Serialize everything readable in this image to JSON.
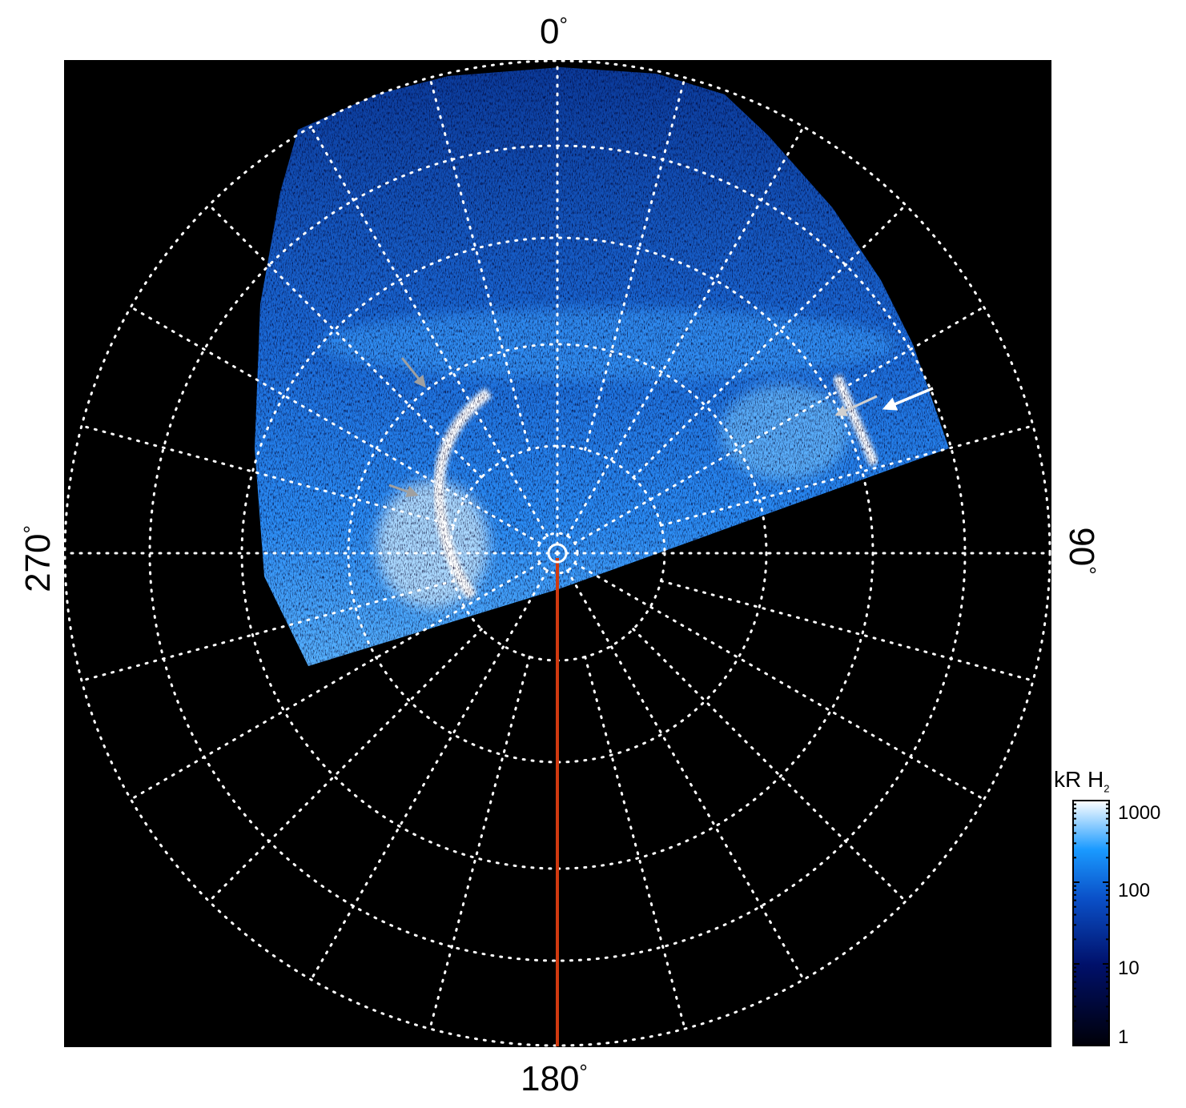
{
  "chart_data": {
    "type": "heatmap",
    "projection": "polar",
    "azimuth_labels": {
      "top": "0",
      "right": "90",
      "bottom": "180",
      "left": "270",
      "unit": "°"
    },
    "grid": true,
    "grid_style": "dotted white",
    "reference_line": {
      "azimuth": 180,
      "color": "#d03a10"
    },
    "colorbar": {
      "title": "kR H",
      "title_subscript": "2",
      "scale": "log",
      "range": [
        1,
        1000
      ],
      "ticks": [
        "1",
        "10",
        "100",
        "1000"
      ],
      "colors": [
        "#000008",
        "#00106a",
        "#0a50c8",
        "#1a9aff",
        "#ffffff"
      ],
      "placement": "bottom-right"
    },
    "annotations": [
      {
        "type": "arrow",
        "color": "#a0a0a0",
        "direction": "down-right"
      },
      {
        "type": "arrow",
        "color": "#a0a0a0",
        "direction": "right"
      },
      {
        "type": "arrow",
        "color": "#d0d0d0",
        "direction": "left"
      },
      {
        "type": "arrow",
        "color": "#ffffff",
        "direction": "left"
      }
    ],
    "background": "#000000"
  }
}
